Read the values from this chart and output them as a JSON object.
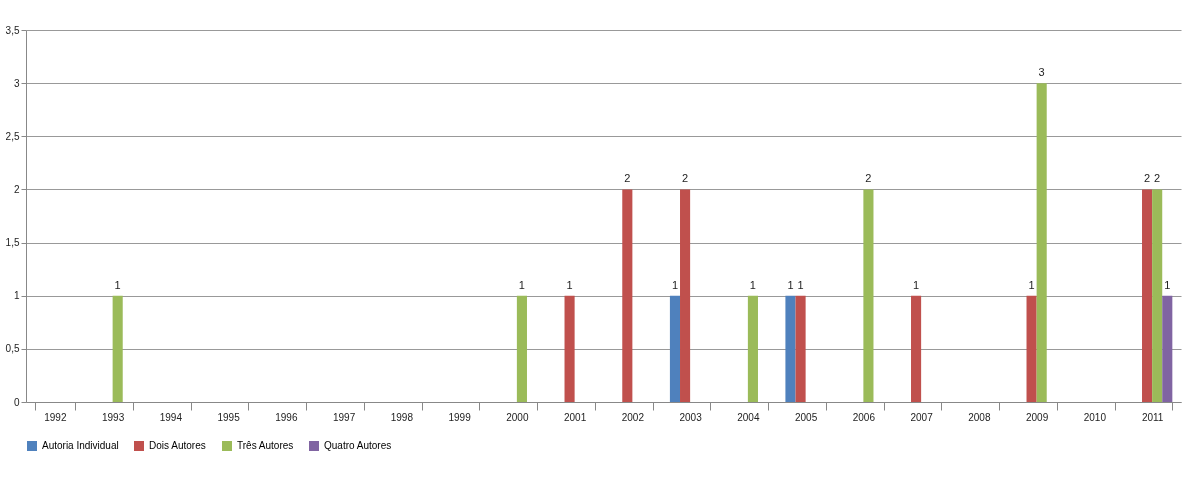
{
  "chart_data": {
    "type": "bar",
    "categories": [
      "1992",
      "1993",
      "1994",
      "1995",
      "1996",
      "1997",
      "1998",
      "1999",
      "2000",
      "2001",
      "2002",
      "2003",
      "2004",
      "2005",
      "2006",
      "2007",
      "2008",
      "2009",
      "2010",
      "2011"
    ],
    "series": [
      {
        "name": "Autoria Individual",
        "color": "#4f81bd",
        "values": [
          0,
          0,
          0,
          0,
          0,
          0,
          0,
          0,
          0,
          0,
          0,
          1,
          0,
          1,
          0,
          0,
          0,
          0,
          0,
          0
        ],
        "value_labels": [
          null,
          null,
          null,
          null,
          null,
          null,
          null,
          null,
          null,
          null,
          null,
          "1",
          null,
          "1",
          null,
          null,
          null,
          null,
          null,
          null
        ]
      },
      {
        "name": "Dois Autores",
        "color": "#c0504d",
        "values": [
          0,
          0,
          0,
          0,
          0,
          0,
          0,
          0,
          0,
          1,
          2,
          2,
          0,
          1,
          0,
          1,
          0,
          1,
          0,
          2
        ],
        "value_labels": [
          null,
          null,
          null,
          null,
          null,
          null,
          null,
          null,
          null,
          "1",
          "2",
          "2",
          null,
          "1",
          null,
          "1",
          null,
          "1",
          null,
          "2"
        ]
      },
      {
        "name": "Três Autores",
        "color": "#9bbb59",
        "values": [
          0,
          1,
          0,
          0,
          0,
          0,
          0,
          0,
          1,
          0,
          0,
          0,
          1,
          0,
          2,
          0,
          0,
          3,
          0,
          2
        ],
        "value_labels": [
          null,
          "1",
          null,
          null,
          null,
          null,
          null,
          null,
          "1",
          null,
          null,
          null,
          "1",
          null,
          "2",
          null,
          null,
          "3",
          null,
          "2"
        ]
      },
      {
        "name": "Quatro Autores",
        "color": "#8064a2",
        "values": [
          0,
          0,
          0,
          0,
          0,
          0,
          0,
          0,
          0,
          0,
          0,
          0,
          0,
          0,
          0,
          0,
          0,
          0,
          0,
          1
        ],
        "value_labels": [
          null,
          null,
          null,
          null,
          null,
          null,
          null,
          null,
          null,
          null,
          null,
          null,
          null,
          null,
          null,
          null,
          null,
          null,
          null,
          "1"
        ]
      }
    ],
    "ylim": [
      0,
      3.5
    ],
    "yticks": [
      0,
      {
        "value": 0.5,
        "label": "0,5"
      },
      1,
      {
        "value": 1.5,
        "label": "1,5"
      },
      2,
      {
        "value": 2.5,
        "label": "2,5"
      },
      3,
      {
        "value": 3.5,
        "label": "3,5"
      }
    ],
    "grid": "y",
    "legend": "bottom"
  }
}
